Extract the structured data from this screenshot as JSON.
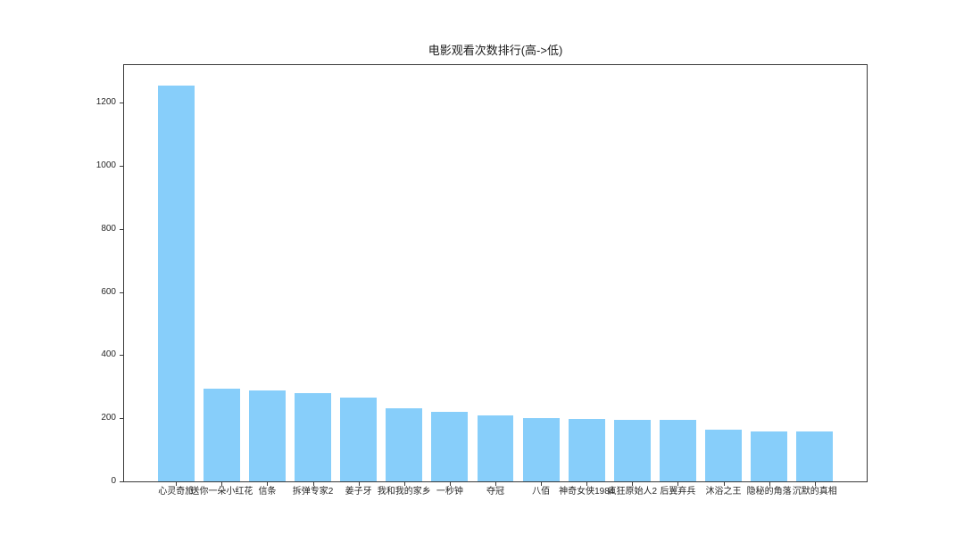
{
  "chart_data": {
    "type": "bar",
    "title": "电影观看次数排行(高->低)",
    "categories": [
      "心灵奇旅",
      "送你一朵小红花",
      "信条",
      "拆弹专家2",
      "姜子牙",
      "我和我的家乡",
      "一秒钟",
      "夺冠",
      "八佰",
      "神奇女侠1984",
      "疯狂原始人2",
      "后翼弃兵",
      "沐浴之王",
      "隐秘的角落",
      "沉默的真相"
    ],
    "values": [
      1255,
      295,
      287,
      281,
      265,
      232,
      220,
      210,
      200,
      199,
      196,
      194,
      164,
      159,
      158
    ],
    "xlabel": "",
    "ylabel": "",
    "ylim": [
      0,
      1320
    ],
    "yticks": [
      0,
      200,
      400,
      600,
      800,
      1000,
      1200
    ],
    "grid": false,
    "legend": null,
    "bar_color": "#87CEFA"
  },
  "colors": {
    "bar": "#87CEFA",
    "axis": "#3a3a3a",
    "tick_text": "#262626",
    "background": "#ffffff"
  }
}
